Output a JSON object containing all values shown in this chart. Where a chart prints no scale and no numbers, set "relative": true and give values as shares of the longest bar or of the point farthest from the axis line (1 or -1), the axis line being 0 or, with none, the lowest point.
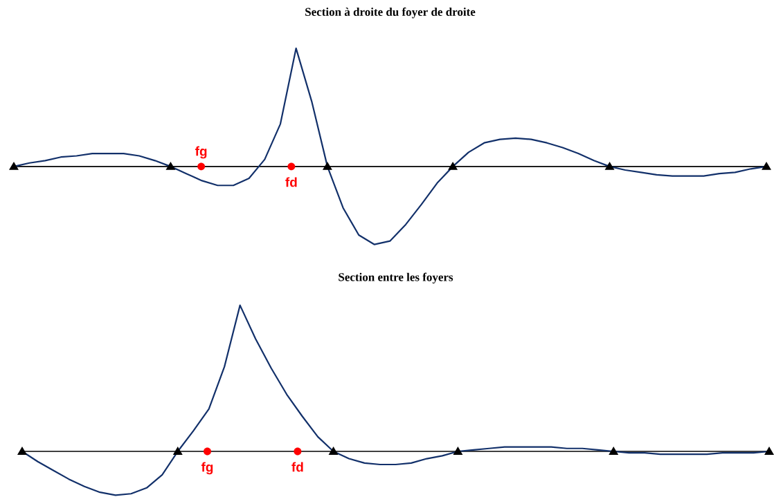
{
  "chart_data": [
    {
      "type": "line",
      "title": "Section à droite du foyer de droite",
      "relative": true,
      "marker": "none",
      "categories": [
        null,
        null,
        null,
        null,
        null,
        null,
        null,
        null,
        null,
        null,
        null,
        null,
        null,
        null,
        null,
        null,
        null,
        null,
        null,
        null,
        null,
        null,
        null,
        null,
        null,
        null,
        null,
        null,
        null,
        null,
        null,
        null,
        null,
        null,
        null,
        null,
        null,
        null,
        null,
        null,
        null,
        null,
        null,
        null,
        null,
        null,
        null,
        null,
        null
      ],
      "series": [
        {
          "color": "#12306a",
          "values": [
            0,
            0.03,
            0.05,
            0.08,
            0.09,
            0.11,
            0.11,
            0.11,
            0.09,
            0.05,
            0,
            -0.06,
            -0.12,
            -0.16,
            -0.16,
            -0.1,
            0.06,
            0.36,
            1,
            0.55,
            0,
            -0.35,
            -0.58,
            -0.66,
            -0.63,
            -0.49,
            -0.32,
            -0.14,
            0,
            0.12,
            0.2,
            0.23,
            0.24,
            0.23,
            0.2,
            0.16,
            0.11,
            0.05,
            0,
            -0.03,
            -0.05,
            -0.07,
            -0.08,
            -0.08,
            -0.08,
            -0.06,
            -0.05,
            -0.02,
            0
          ]
        }
      ],
      "annotations": [
        "fg",
        "fd"
      ]
    },
    {
      "type": "line",
      "title": "Section entre les foyers",
      "relative": true,
      "marker": "none",
      "categories": [
        null,
        null,
        null,
        null,
        null,
        null,
        null,
        null,
        null,
        null,
        null,
        null,
        null,
        null,
        null,
        null,
        null,
        null,
        null,
        null,
        null,
        null,
        null,
        null,
        null,
        null,
        null,
        null,
        null,
        null,
        null,
        null,
        null,
        null,
        null,
        null,
        null,
        null,
        null,
        null,
        null,
        null,
        null,
        null,
        null,
        null,
        null,
        null,
        null
      ],
      "series": [
        {
          "color": "#12306a",
          "values": [
            0,
            -0.07,
            -0.13,
            -0.19,
            -0.24,
            -0.28,
            -0.3,
            -0.29,
            -0.25,
            -0.16,
            0,
            0.14,
            0.29,
            0.58,
            1,
            0.77,
            0.57,
            0.39,
            0.24,
            0.1,
            0,
            -0.05,
            -0.08,
            -0.09,
            -0.09,
            -0.08,
            -0.05,
            -0.03,
            0,
            0.01,
            0.02,
            0.03,
            0.03,
            0.03,
            0.03,
            0.02,
            0.02,
            0.01,
            0,
            -0.01,
            -0.01,
            -0.02,
            -0.02,
            -0.02,
            -0.02,
            -0.01,
            -0.01,
            -0.01,
            0
          ]
        }
      ],
      "annotations": [
        "fg",
        "fd"
      ]
    }
  ]
}
